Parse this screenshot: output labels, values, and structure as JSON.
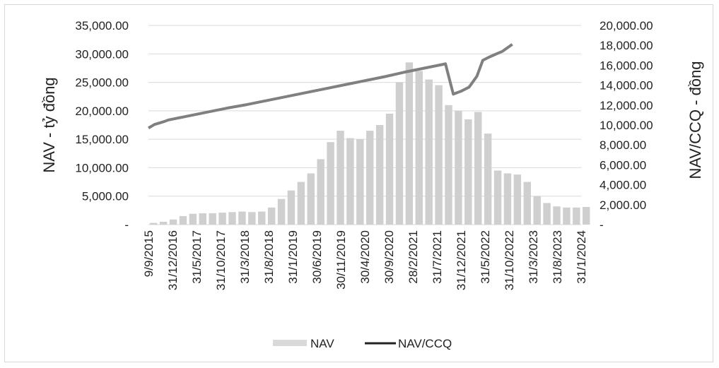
{
  "chart_data": {
    "type": "bar+line",
    "title": "",
    "y_left_label": "NAV - tỷ đồng",
    "y_right_label": "NAV/CCQ - đồng",
    "y_left_range": [
      0,
      35000
    ],
    "y_right_range": [
      0,
      20000
    ],
    "y_left_ticks": [
      "-",
      "5,000.00",
      "10,000.00",
      "15,000.00",
      "20,000.00",
      "25,000.00",
      "30,000.00",
      "35,000.00"
    ],
    "y_right_ticks": [
      "-",
      "2,000.00",
      "4,000.00",
      "6,000.00",
      "8,000.00",
      "10,000.00",
      "12,000.00",
      "14,000.00",
      "16,000.00",
      "18,000.00",
      "20,000.00"
    ],
    "x_tick_labels": [
      "9/9/2015",
      "31/12/2016",
      "31/5/2017",
      "31/10/2017",
      "31/3/2018",
      "31/8/2018",
      "31/1/2019",
      "30/6/2019",
      "30/11/2019",
      "30/4/2020",
      "30/9/2020",
      "28/2/2021",
      "31/7/2021",
      "31/12/2021",
      "31/5/2022",
      "31/10/2022",
      "31/3/2023",
      "31/8/2023",
      "31/1/2024"
    ],
    "grid": "horizontal",
    "legend_position": "bottom",
    "series": [
      {
        "name": "NAV",
        "type": "bar",
        "axis": "left",
        "color": "#cfcfcf",
        "x": [
          0,
          0.5,
          1,
          1.5,
          2,
          2.5,
          3,
          3.5,
          4,
          4.5,
          5,
          5.5,
          6,
          6.5,
          7,
          7.5,
          8,
          8.5,
          9,
          9.5,
          10,
          10.5,
          11,
          11.5,
          12,
          12.5,
          13,
          13.5,
          14,
          14.5,
          15,
          15.5,
          16,
          16.5,
          17,
          17.5,
          18,
          18.5
        ],
        "values": [
          300,
          500,
          900,
          1500,
          1900,
          2000,
          2000,
          2100,
          2200,
          2300,
          2200,
          2300,
          3000,
          4500,
          6000,
          7500,
          9000,
          11500,
          14500,
          16500,
          15200,
          15000,
          16500,
          17500,
          19500,
          25000,
          28500,
          27000,
          25500,
          24500,
          21000,
          20000,
          18500,
          19800,
          16000,
          9500,
          9000,
          8800
        ]
      },
      {
        "name": "NAV/CCQ",
        "type": "line",
        "axis": "right",
        "color": "#808080",
        "x": [
          0,
          0.3,
          0.8,
          1,
          2,
          3,
          4,
          5,
          6,
          7,
          8,
          9,
          10,
          11,
          12,
          13,
          14,
          15,
          15.1,
          15.5,
          15.9,
          16.3,
          16.7,
          17,
          17.3,
          17.7,
          18,
          18.5
        ],
        "values": [
          9700,
          10050,
          10350,
          10500,
          10900,
          11300,
          11700,
          12050,
          12450,
          12850,
          13250,
          13650,
          14050,
          14450,
          14850,
          15300,
          15700,
          16100,
          16150,
          13100,
          13400,
          13800,
          14900,
          16500,
          16800,
          17150,
          17400,
          18100
        ]
      }
    ],
    "bar_values_tail": [
      7500,
      5000,
      3800,
      3200,
      3000,
      3000,
      3100
    ],
    "bar_x_tail": [
      19,
      19.5,
      20,
      20.5,
      21,
      21.5,
      22
    ]
  },
  "legend": [
    {
      "label": "NAV"
    },
    {
      "label": "NAV/CCQ"
    }
  ]
}
